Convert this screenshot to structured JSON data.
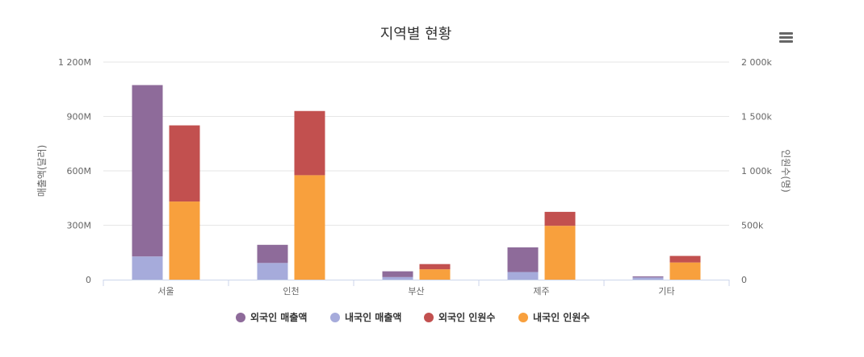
{
  "chart_data": {
    "type": "bar",
    "title": "지역별 현황",
    "categories": [
      "서울",
      "인천",
      "부산",
      "제주",
      "기타"
    ],
    "stacks": [
      {
        "axis": "left",
        "series": [
          "외국인 매출액",
          "내국인 매출액"
        ]
      },
      {
        "axis": "right",
        "series": [
          "외국인 인원수",
          "내국인 인원수"
        ]
      }
    ],
    "series": [
      {
        "name": "외국인 매출액",
        "stack": "sales",
        "axis": "left",
        "color": "#8e6b9a",
        "values": [
          945,
          100,
          32,
          136,
          6
        ]
      },
      {
        "name": "내국인 매출액",
        "stack": "sales",
        "axis": "left",
        "color": "#a6abdb",
        "values": [
          128,
          92,
          14,
          42,
          12
        ]
      },
      {
        "name": "외국인 인원수",
        "stack": "visitors",
        "axis": "right",
        "color": "#c2504f",
        "values": [
          700,
          590,
          48,
          128,
          60
        ]
      },
      {
        "name": "내국인 인원수",
        "stack": "visitors",
        "axis": "right",
        "color": "#f8a03d",
        "values": [
          718,
          960,
          95,
          495,
          158
        ]
      }
    ],
    "y_left": {
      "label": "매출액(달러)",
      "ylim": [
        0,
        1200
      ],
      "ticks": [
        0,
        300,
        600,
        900,
        1200
      ],
      "tick_labels": [
        "0",
        "300M",
        "600M",
        "900M",
        "1 200M"
      ]
    },
    "y_right": {
      "label": "인원수(명)",
      "ylim": [
        0,
        2000
      ],
      "ticks": [
        0,
        500,
        1000,
        1500,
        2000
      ],
      "tick_labels": [
        "0",
        "500k",
        "1 000k",
        "1 500k",
        "2 000k"
      ]
    },
    "grid": true,
    "legend_position": "bottom-center"
  },
  "menu": {
    "icon": "hamburger-menu-icon"
  }
}
